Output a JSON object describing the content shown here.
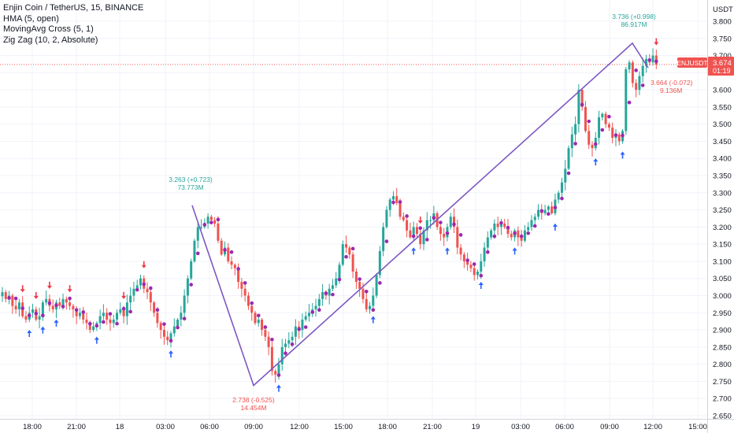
{
  "legend": {
    "title": "Enjin Coin / TetherUS, 15, BINANCE",
    "indicator1": "HMA (5, open)",
    "indicator2": "MovingAvg Cross (5, 1)",
    "indicator3": "Zig Zag (10, 2, Absolute)"
  },
  "price_axis": {
    "currency": "USDT",
    "ticks": [
      "3.800",
      "3.750",
      "3.700",
      "3.650",
      "3.600",
      "3.550",
      "3.500",
      "3.450",
      "3.400",
      "3.350",
      "3.300",
      "3.250",
      "3.200",
      "3.150",
      "3.100",
      "3.050",
      "3.000",
      "2.950",
      "2.900",
      "2.850",
      "2.800",
      "2.750",
      "2.700",
      "2.650"
    ],
    "last_symbol": "ENJUSDT",
    "last_price": "3.674",
    "countdown": "01:19"
  },
  "time_axis": {
    "ticks": [
      "18:00",
      "21:00",
      "18",
      "03:00",
      "06:00",
      "09:00",
      "12:00",
      "15:00",
      "18:00",
      "21:00",
      "19",
      "03:00",
      "06:00",
      "09:00",
      "12:00",
      "15:00"
    ]
  },
  "colors": {
    "up": "#26a69a",
    "down": "#ef5350",
    "zigzag": "#7e57c2",
    "hma_dot": "#9c27b0",
    "buy_arrow": "#2962ff",
    "sell_arrow": "#f23645",
    "price_line": "#ef5350"
  },
  "chart_data": {
    "type": "candlestick",
    "symbol": "ENJUSDT",
    "interval": "15",
    "exchange": "BINANCE",
    "ylim": [
      2.63,
      3.82
    ],
    "last_price": 3.674,
    "zigzag": [
      {
        "time": "04:45 (18)",
        "price": 3.263
      },
      {
        "time": "09:00 (18)",
        "price": 2.738
      },
      {
        "time": "10:30 (19)",
        "price": 3.736
      },
      {
        "time": "12:15 (19)",
        "price": 3.664
      }
    ],
    "pivot_labels": [
      {
        "price": "3.263 (+0.723)",
        "volume": "73.773M",
        "kind": "high"
      },
      {
        "price": "2.738 (-0.525)",
        "volume": "14.454M",
        "kind": "low"
      },
      {
        "price": "3.736 (+0.998)",
        "volume": "86.917M",
        "kind": "high"
      },
      {
        "price": "3.664 (-0.072)",
        "volume": "9.136M",
        "kind": "low"
      }
    ],
    "closes": [
      3.01,
      2.99,
      3.0,
      2.97,
      2.96,
      2.98,
      2.94,
      2.93,
      2.95,
      2.96,
      2.93,
      2.94,
      2.98,
      2.99,
      2.97,
      2.96,
      2.98,
      2.97,
      2.99,
      2.98,
      2.97,
      2.96,
      2.94,
      2.95,
      2.93,
      2.92,
      2.9,
      2.91,
      2.92,
      2.94,
      2.95,
      2.93,
      2.92,
      2.93,
      2.95,
      2.96,
      2.94,
      2.98,
      3.0,
      3.02,
      3.03,
      3.05,
      3.02,
      3.01,
      2.98,
      2.95,
      2.92,
      2.9,
      2.88,
      2.87,
      2.89,
      2.91,
      2.93,
      2.95,
      3.0,
      3.05,
      3.1,
      3.16,
      3.2,
      3.2,
      3.21,
      3.23,
      3.22,
      3.21,
      3.16,
      3.12,
      3.14,
      3.1,
      3.09,
      3.08,
      3.04,
      3.02,
      3.0,
      2.97,
      2.95,
      2.92,
      2.93,
      2.9,
      2.88,
      2.85,
      2.78,
      2.77,
      2.8,
      2.85,
      2.86,
      2.87,
      2.88,
      2.91,
      2.9,
      2.93,
      2.94,
      2.95,
      2.96,
      2.97,
      2.99,
      3.01,
      3.0,
      3.02,
      3.03,
      3.05,
      3.09,
      3.15,
      3.14,
      3.12,
      3.07,
      3.04,
      3.02,
      2.99,
      2.96,
      2.97,
      3.0,
      3.06,
      3.13,
      3.2,
      3.25,
      3.28,
      3.29,
      3.27,
      3.23,
      3.22,
      3.19,
      3.17,
      3.2,
      3.18,
      3.15,
      3.19,
      3.22,
      3.22,
      3.24,
      3.2,
      3.18,
      3.17,
      3.2,
      3.23,
      3.2,
      3.14,
      3.12,
      3.1,
      3.09,
      3.08,
      3.06,
      3.07,
      3.1,
      3.14,
      3.17,
      3.19,
      3.21,
      3.2,
      3.21,
      3.2,
      3.18,
      3.17,
      3.19,
      3.17,
      3.16,
      3.19,
      3.2,
      3.22,
      3.23,
      3.25,
      3.24,
      3.25,
      3.26,
      3.24,
      3.28,
      3.3,
      3.33,
      3.37,
      3.43,
      3.47,
      3.5,
      3.6,
      3.55,
      3.48,
      3.44,
      3.43,
      3.46,
      3.52,
      3.53,
      3.5,
      3.49,
      3.46,
      3.47,
      3.45,
      3.48,
      3.66,
      3.68,
      3.62,
      3.6,
      3.64,
      3.67,
      3.69,
      3.68,
      3.7,
      3.674
    ]
  }
}
